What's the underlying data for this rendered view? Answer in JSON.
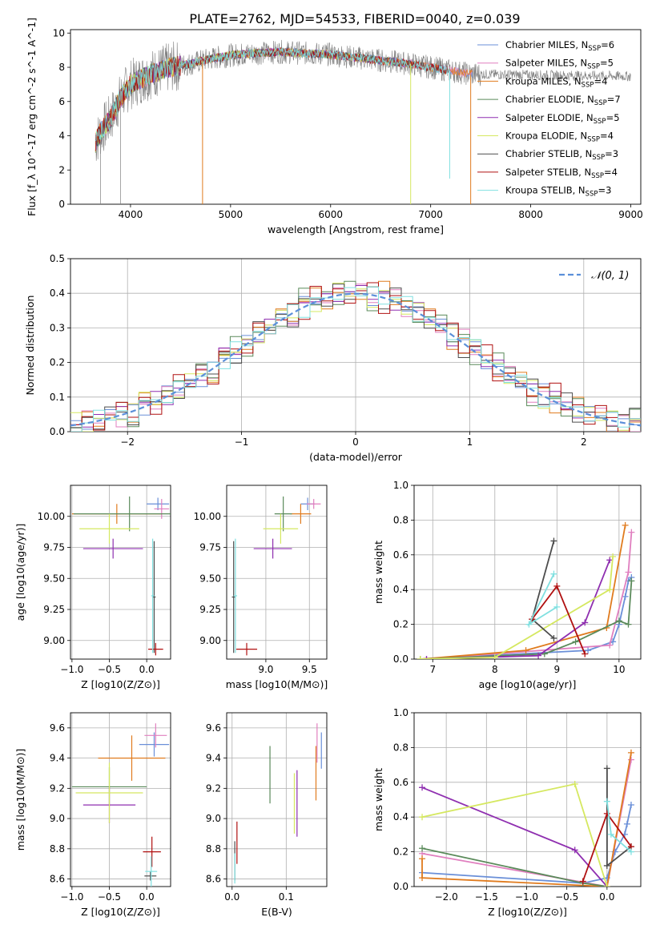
{
  "figure_title": "PLATE=2762, MJD=54533, FIBERID=0040, z=0.039",
  "colors": {
    "Chabrier MILES": "#6a8fd8",
    "Salpeter MILES": "#e07fbf",
    "Kroupa MILES": "#e07b1e",
    "Chabrier ELODIE": "#5a8a5a",
    "Salpeter ELODIE": "#8f2fb0",
    "Kroupa ELODIE": "#d5e860",
    "Chabrier STELIB": "#4d4d4d",
    "Salpeter STELIB": "#b01010",
    "Kroupa STELIB": "#80e0e0",
    "data": "#808080",
    "gaussian": "#5b8fd9",
    "grid": "#b0b0b0"
  },
  "chart_data": [
    {
      "id": "spectrum",
      "type": "line",
      "title": "PLATE=2762, MJD=54533, FIBERID=0040, z=0.039",
      "xlabel": "wavelength [Angstrom, rest frame]",
      "ylabel": "Flux [f_λ 10^-17 erg cm^-2 s^-1 A^-1]",
      "xlim": [
        3400,
        9100
      ],
      "ylim": [
        0,
        10.2
      ],
      "xticks": [
        4000,
        5000,
        6000,
        7000,
        8000,
        9000
      ],
      "yticks": [
        0,
        2,
        4,
        6,
        8,
        10
      ],
      "grid": false,
      "legend": "upper-right",
      "continuum_x": [
        3650,
        3700,
        3800,
        3900,
        4000,
        4200,
        4400,
        4600,
        4800,
        5000,
        5200,
        5500,
        5800,
        6000,
        6200,
        6500,
        6800,
        7000,
        7200,
        7400
      ],
      "continuum_y": [
        3.6,
        4.2,
        5.0,
        6.2,
        7.0,
        7.6,
        8.0,
        8.2,
        8.5,
        8.7,
        8.8,
        8.9,
        8.8,
        8.75,
        8.6,
        8.4,
        8.2,
        8.0,
        7.8,
        7.6
      ],
      "data_extends_to": 9000,
      "dips": [
        {
          "x": 4720,
          "y": 0.0,
          "series": "Kroupa MILES"
        },
        {
          "x": 6800,
          "y": 0.0,
          "series": "Kroupa ELODIE"
        },
        {
          "x": 7190,
          "y": 1.5,
          "series": "Kroupa STELIB"
        },
        {
          "x": 7400,
          "y": 0.0,
          "series": "Kroupa MILES"
        },
        {
          "x": 3700,
          "y": 0.0,
          "series": "data"
        },
        {
          "x": 3900,
          "y": 0.0,
          "series": "data"
        }
      ],
      "legend_entries": [
        {
          "name": "Chabrier MILES",
          "nssp": "6"
        },
        {
          "name": "Salpeter MILES",
          "nssp": "5"
        },
        {
          "name": "Kroupa MILES",
          "nssp": "4"
        },
        {
          "name": "Chabrier ELODIE",
          "nssp": "7"
        },
        {
          "name": "Salpeter ELODIE",
          "nssp": "5"
        },
        {
          "name": "Kroupa ELODIE",
          "nssp": "4"
        },
        {
          "name": "Chabrier STELIB",
          "nssp": "3"
        },
        {
          "name": "Salpeter STELIB",
          "nssp": "4"
        },
        {
          "name": "Kroupa STELIB",
          "nssp": "3"
        }
      ]
    },
    {
      "id": "residuals",
      "type": "histogram",
      "xlabel": "(data-model)/error",
      "ylabel": "Normed distribution",
      "xlim": [
        -2.5,
        2.5
      ],
      "ylim": [
        0,
        0.5
      ],
      "xticks": [
        -2,
        -1,
        0,
        1,
        2
      ],
      "yticks": [
        0.0,
        0.1,
        0.2,
        0.3,
        0.4,
        0.5
      ],
      "grid": true,
      "legend": "upper-right",
      "gaussian_label": "𝒩(0, 1)",
      "bin_width": 0.1,
      "bin_start": -2.5,
      "jitter": [
        0.02,
        -0.03,
        0.01,
        0.04,
        -0.02,
        0.03,
        -0.04,
        0.0,
        0.05,
        -0.01,
        0.02,
        -0.05,
        0.03,
        0.01,
        -0.03,
        0.04,
        -0.02,
        0.0,
        0.03,
        -0.04,
        0.05,
        -0.01,
        0.02,
        -0.03,
        0.01,
        0.04,
        -0.05,
        0.02,
        0.0,
        -0.02,
        0.03,
        -0.01,
        0.04,
        -0.03,
        0.02,
        0.05,
        -0.04,
        0.01,
        0.0,
        -0.02,
        0.03,
        0.06,
        -0.01,
        0.02,
        -0.03,
        0.04,
        0.01,
        -0.05,
        0.02,
        0.0
      ]
    },
    {
      "id": "age-vs-Z",
      "type": "errorbar",
      "xlabel": "Z [log10(Z/Z⊙)]",
      "ylabel": "age  [log10(age/yr)]",
      "xlim": [
        -1.02,
        0.32
      ],
      "ylim": [
        8.85,
        10.25
      ],
      "xticks": [
        -1.0,
        -0.5,
        0.0
      ],
      "yticks": [
        9.0,
        9.25,
        9.5,
        9.75,
        10.0
      ],
      "grid": true,
      "points": [
        {
          "series": "Chabrier MILES",
          "x": 0.15,
          "y": 10.1,
          "xerr": 0.15,
          "yerr": 0.05
        },
        {
          "series": "Salpeter MILES",
          "x": 0.2,
          "y": 10.06,
          "xerr": 0.1,
          "yerr": 0.08
        },
        {
          "series": "Kroupa MILES",
          "x": -0.4,
          "y": 10.02,
          "xerr": 0.6,
          "yerr": 0.08
        },
        {
          "series": "Chabrier ELODIE",
          "x": -0.23,
          "y": 10.02,
          "xerr": 0.75,
          "yerr": 0.14
        },
        {
          "series": "Salpeter ELODIE",
          "x": -0.45,
          "y": 9.74,
          "xerr": 0.4,
          "yerr": 0.08
        },
        {
          "series": "Kroupa ELODIE",
          "x": -0.5,
          "y": 9.9,
          "xerr": 0.4,
          "yerr": 0.12
        },
        {
          "series": "Chabrier STELIB",
          "x": 0.1,
          "y": 9.35,
          "xerr": 0.02,
          "yerr": 0.45
        },
        {
          "series": "Salpeter STELIB",
          "x": 0.12,
          "y": 8.93,
          "xerr": 0.1,
          "yerr": 0.05
        },
        {
          "series": "Kroupa STELIB",
          "x": 0.08,
          "y": 9.36,
          "xerr": 0.02,
          "yerr": 0.46
        }
      ]
    },
    {
      "id": "age-vs-mass",
      "type": "errorbar",
      "xlabel": "mass [log10(M/M⊙)]",
      "ylabel": "",
      "xlim": [
        8.55,
        9.7
      ],
      "ylim": [
        8.85,
        10.25
      ],
      "xticks": [
        9.0,
        9.5
      ],
      "yticks": [
        9.0,
        9.25,
        9.5,
        9.75,
        10.0
      ],
      "grid": true,
      "points": [
        {
          "series": "Chabrier MILES",
          "x": 9.48,
          "y": 10.1,
          "xerr": 0.08,
          "yerr": 0.05
        },
        {
          "series": "Salpeter MILES",
          "x": 9.55,
          "y": 10.1,
          "xerr": 0.08,
          "yerr": 0.04
        },
        {
          "series": "Kroupa MILES",
          "x": 9.4,
          "y": 10.02,
          "xerr": 0.12,
          "yerr": 0.08
        },
        {
          "series": "Chabrier ELODIE",
          "x": 9.2,
          "y": 10.02,
          "xerr": 0.1,
          "yerr": 0.14
        },
        {
          "series": "Salpeter ELODIE",
          "x": 9.08,
          "y": 9.74,
          "xerr": 0.22,
          "yerr": 0.08
        },
        {
          "series": "Kroupa ELODIE",
          "x": 9.17,
          "y": 9.9,
          "xerr": 0.2,
          "yerr": 0.12
        },
        {
          "series": "Chabrier STELIB",
          "x": 8.63,
          "y": 9.35,
          "xerr": 0.02,
          "yerr": 0.45
        },
        {
          "series": "Salpeter STELIB",
          "x": 8.78,
          "y": 8.93,
          "xerr": 0.12,
          "yerr": 0.05
        },
        {
          "series": "Kroupa STELIB",
          "x": 8.65,
          "y": 9.36,
          "xerr": 0.02,
          "yerr": 0.46
        }
      ]
    },
    {
      "id": "weight-vs-age",
      "type": "line",
      "xlabel": "age  [log10(age/yr)]",
      "ylabel": "mass weight",
      "xlim": [
        6.7,
        10.35
      ],
      "ylim": [
        0,
        1.0
      ],
      "xticks": [
        7,
        8,
        9,
        10
      ],
      "yticks": [
        0.0,
        0.2,
        0.4,
        0.6,
        0.8,
        1.0
      ],
      "grid": true,
      "series": [
        {
          "name": "Chabrier MILES",
          "x": [
            6.8,
            9.5,
            9.9,
            10.0,
            10.1,
            10.15,
            10.2
          ],
          "y": [
            0.0,
            0.05,
            0.1,
            0.2,
            0.36,
            0.45,
            0.47
          ]
        },
        {
          "name": "Salpeter MILES",
          "x": [
            6.9,
            9.85,
            10.15,
            10.2
          ],
          "y": [
            0.0,
            0.08,
            0.5,
            0.73
          ]
        },
        {
          "name": "Kroupa MILES",
          "x": [
            6.8,
            8.5,
            9.8,
            10.1
          ],
          "y": [
            0.0,
            0.05,
            0.18,
            0.77
          ]
        },
        {
          "name": "Chabrier ELODIE",
          "x": [
            6.8,
            8.8,
            9.3,
            10.0,
            10.15,
            10.2
          ],
          "y": [
            0.0,
            0.03,
            0.1,
            0.22,
            0.2,
            0.45
          ]
        },
        {
          "name": "Salpeter ELODIE",
          "x": [
            6.9,
            8.7,
            9.45,
            9.85
          ],
          "y": [
            0.0,
            0.02,
            0.21,
            0.57
          ]
        },
        {
          "name": "Kroupa ELODIE",
          "x": [
            6.8,
            8.0,
            9.85,
            9.9
          ],
          "y": [
            0.0,
            0.01,
            0.4,
            0.59
          ]
        },
        {
          "name": "Chabrier STELIB",
          "x": [
            8.95,
            8.6,
            8.95
          ],
          "y": [
            0.68,
            0.23,
            0.12
          ]
        },
        {
          "name": "Salpeter STELIB",
          "x": [
            8.6,
            9.0,
            9.45
          ],
          "y": [
            0.23,
            0.42,
            0.03
          ]
        },
        {
          "name": "Kroupa STELIB",
          "x": [
            8.95,
            8.55,
            9.0
          ],
          "y": [
            0.49,
            0.2,
            0.3
          ]
        }
      ]
    },
    {
      "id": "mass-vs-Z",
      "type": "errorbar",
      "xlabel": "Z [log10(Z/Z⊙)]",
      "ylabel": "mass [log10(M/M⊙)]",
      "xlim": [
        -1.02,
        0.32
      ],
      "ylim": [
        8.55,
        9.7
      ],
      "xticks": [
        -1.0,
        -0.5,
        0.0
      ],
      "yticks": [
        8.6,
        8.8,
        9.0,
        9.2,
        9.4,
        9.6
      ],
      "grid": true,
      "points": [
        {
          "series": "Chabrier MILES",
          "x": 0.1,
          "y": 9.49,
          "xerr": 0.2,
          "yerr": 0.08
        },
        {
          "series": "Salpeter MILES",
          "x": 0.12,
          "y": 9.55,
          "xerr": 0.15,
          "yerr": 0.08
        },
        {
          "series": "Kroupa MILES",
          "x": -0.2,
          "y": 9.4,
          "xerr": 0.45,
          "yerr": 0.15
        },
        {
          "series": "Chabrier ELODIE",
          "x": -0.5,
          "y": 9.21,
          "xerr": 0.5,
          "yerr": 0.13
        },
        {
          "series": "Salpeter ELODIE",
          "x": -0.5,
          "y": 9.09,
          "xerr": 0.35,
          "yerr": 0.12
        },
        {
          "series": "Kroupa ELODIE",
          "x": -0.5,
          "y": 9.17,
          "xerr": 0.45,
          "yerr": 0.2
        },
        {
          "series": "Chabrier STELIB",
          "x": 0.05,
          "y": 8.62,
          "xerr": 0.08,
          "yerr": 0.03
        },
        {
          "series": "Salpeter STELIB",
          "x": 0.07,
          "y": 8.78,
          "xerr": 0.12,
          "yerr": 0.1
        },
        {
          "series": "Kroupa STELIB",
          "x": 0.06,
          "y": 8.65,
          "xerr": 0.08,
          "yerr": 0.1
        }
      ]
    },
    {
      "id": "mass-vs-ebv",
      "type": "errorbar",
      "xlabel": "E(B-V)",
      "ylabel": "",
      "xlim": [
        -0.01,
        0.175
      ],
      "ylim": [
        8.55,
        9.7
      ],
      "xticks": [
        0.0,
        0.1
      ],
      "yticks": [
        8.6,
        8.8,
        9.0,
        9.2,
        9.4,
        9.6
      ],
      "grid": true,
      "points": [
        {
          "series": "Chabrier MILES",
          "x": 0.165,
          "y": 9.45,
          "xerr": 0,
          "yerr": 0.12
        },
        {
          "series": "Salpeter MILES",
          "x": 0.157,
          "y": 9.5,
          "xerr": 0,
          "yerr": 0.13
        },
        {
          "series": "Kroupa MILES",
          "x": 0.155,
          "y": 9.3,
          "xerr": 0,
          "yerr": 0.18
        },
        {
          "series": "Chabrier ELODIE",
          "x": 0.07,
          "y": 9.29,
          "xerr": 0,
          "yerr": 0.19
        },
        {
          "series": "Salpeter ELODIE",
          "x": 0.12,
          "y": 9.1,
          "xerr": 0,
          "yerr": 0.22
        },
        {
          "series": "Kroupa ELODIE",
          "x": 0.115,
          "y": 9.1,
          "xerr": 0,
          "yerr": 0.2
        },
        {
          "series": "Chabrier STELIB",
          "x": 0.005,
          "y": 8.72,
          "xerr": 0,
          "yerr": 0.13
        },
        {
          "series": "Salpeter STELIB",
          "x": 0.009,
          "y": 8.84,
          "xerr": 0,
          "yerr": 0.14
        },
        {
          "series": "Kroupa STELIB",
          "x": 0.005,
          "y": 8.67,
          "xerr": 0,
          "yerr": 0.1
        }
      ]
    },
    {
      "id": "weight-vs-Z",
      "type": "line",
      "xlabel": "Z [log10(Z/Z⊙)]",
      "ylabel": "mass weight",
      "xlim": [
        -2.4,
        0.42
      ],
      "ylim": [
        0,
        1.0
      ],
      "xticks": [
        -2.0,
        -1.5,
        -1.0,
        -0.5,
        0.0
      ],
      "yticks": [
        0.0,
        0.2,
        0.4,
        0.6,
        0.8,
        1.0
      ],
      "grid": true,
      "series": [
        {
          "name": "Chabrier MILES",
          "x": [
            -2.3,
            -0.3,
            0.0,
            0.1,
            0.22,
            0.25,
            0.3
          ],
          "y": [
            0.08,
            0.02,
            0.05,
            0.2,
            0.3,
            0.36,
            0.47
          ]
        },
        {
          "name": "Salpeter MILES",
          "x": [
            -2.3,
            0.0,
            0.3
          ],
          "y": [
            0.19,
            0.0,
            0.73
          ]
        },
        {
          "name": "Kroupa MILES",
          "x": [
            -2.3,
            -2.3,
            0.0,
            0.3
          ],
          "y": [
            0.16,
            0.05,
            0.0,
            0.77
          ]
        },
        {
          "name": "Chabrier ELODIE",
          "x": [
            -2.3,
            -0.3,
            0.0
          ],
          "y": [
            0.22,
            0.02,
            0.0
          ]
        },
        {
          "name": "Salpeter ELODIE",
          "x": [
            -2.3,
            -0.4,
            0.0
          ],
          "y": [
            0.57,
            0.21,
            0.0
          ]
        },
        {
          "name": "Kroupa ELODIE",
          "x": [
            -2.3,
            -0.4,
            0.0
          ],
          "y": [
            0.4,
            0.59,
            0.0
          ]
        },
        {
          "name": "Chabrier STELIB",
          "x": [
            0.0,
            0.0,
            0.3
          ],
          "y": [
            0.68,
            0.12,
            0.23
          ]
        },
        {
          "name": "Salpeter STELIB",
          "x": [
            -0.3,
            0.0,
            0.3
          ],
          "y": [
            0.03,
            0.42,
            0.23
          ]
        },
        {
          "name": "Kroupa STELIB",
          "x": [
            0.0,
            0.05,
            0.3
          ],
          "y": [
            0.49,
            0.3,
            0.2
          ]
        }
      ]
    }
  ]
}
